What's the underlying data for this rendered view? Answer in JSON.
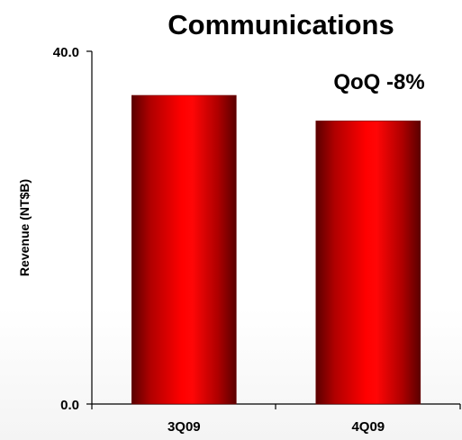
{
  "chart_data": {
    "type": "bar",
    "title": "Communications",
    "annotation": "QoQ -8%",
    "ylabel": "Revenue (NT$B)",
    "xlabel": "",
    "categories": [
      "3Q09",
      "4Q09"
    ],
    "values": [
      35.0,
      32.1
    ],
    "ylim": [
      0,
      40
    ],
    "yticks": [
      "0.0",
      "40.0"
    ],
    "grid": false,
    "bar_color": "#ff0000",
    "bar_edge_color": "#6a0000"
  }
}
